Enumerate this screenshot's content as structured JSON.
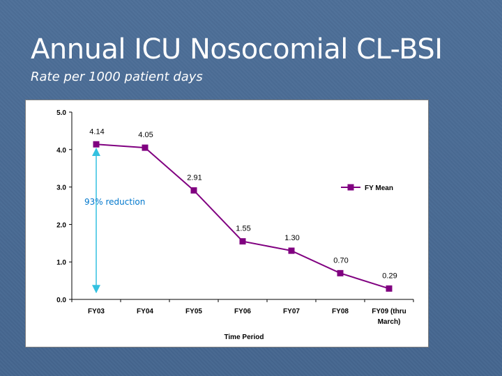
{
  "slide": {
    "title": "Annual ICU Nosocomial CL-BSI",
    "subtitle": "Rate per 1000 patient days"
  },
  "chart_data": {
    "type": "line",
    "categories": [
      "FY03",
      "FY04",
      "FY05",
      "FY06",
      "FY07",
      "FY08",
      "FY09 (thru March)"
    ],
    "series": [
      {
        "name": "FY Mean",
        "values": [
          4.14,
          4.05,
          2.91,
          1.55,
          1.3,
          0.7,
          0.29
        ],
        "color": "#800080"
      }
    ],
    "data_labels": [
      "4.14",
      "4.05",
      "2.91",
      "1.55",
      "1.30",
      "0.70",
      "0.29"
    ],
    "xlabel": "Time Period",
    "ylabel": "",
    "ylim": [
      0,
      5
    ],
    "yticks": [
      "0.0",
      "1.0",
      "2.0",
      "3.0",
      "4.0",
      "5.0"
    ],
    "grid": false,
    "legend_position": "right",
    "annotation": {
      "text": "93% reduction",
      "from_value": 0,
      "to_value": 4.14,
      "category_index": 0,
      "color": "#33c1e0"
    }
  },
  "colors": {
    "background": "#4a6c95",
    "title": "#ffffff",
    "annotation_text": "#0077cc"
  }
}
